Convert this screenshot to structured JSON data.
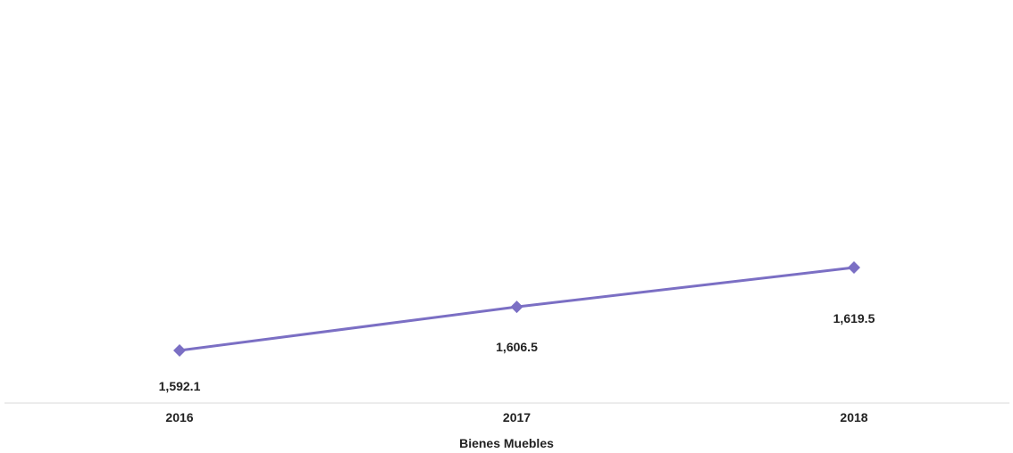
{
  "chart_data": {
    "type": "line",
    "title": "",
    "xlabel": "Bienes Muebles",
    "ylabel": "",
    "categories": [
      "2016",
      "2017",
      "2018"
    ],
    "series": [
      {
        "values": [
          1592.1,
          1606.5,
          1619.5
        ],
        "labels": [
          "1,592.1",
          "1,606.5",
          "1,619.5"
        ]
      }
    ],
    "grid": false,
    "colors": {
      "line": "#7b6fc4",
      "marker": "#7b6fc4",
      "axis": "#d9d9d9"
    }
  }
}
